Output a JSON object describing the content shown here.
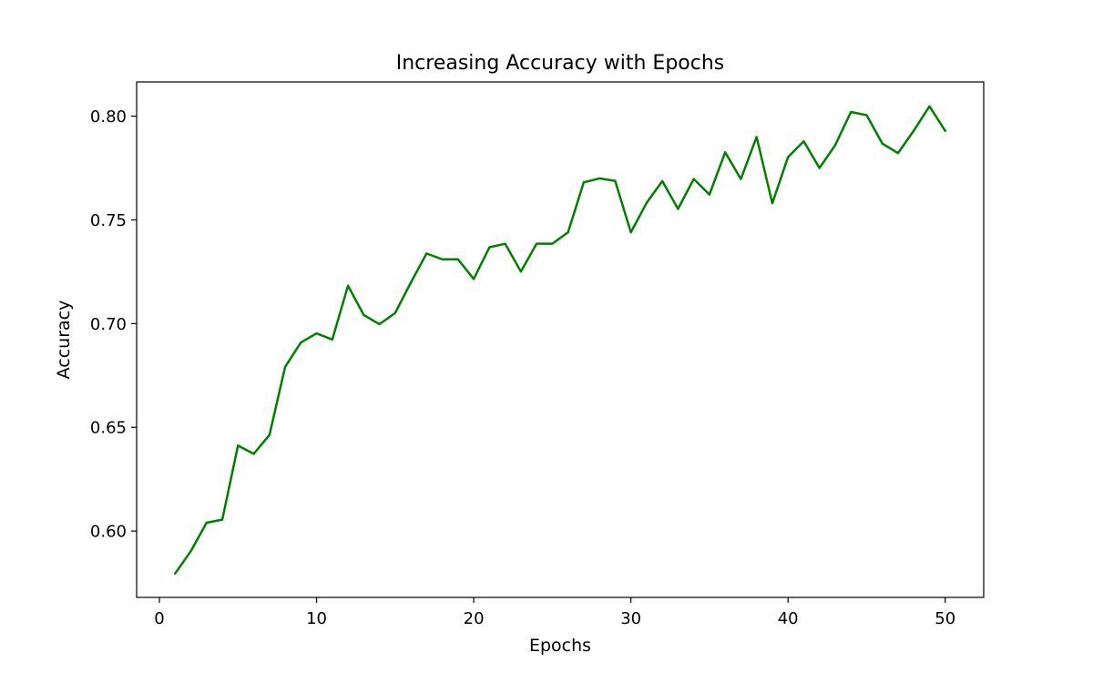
{
  "chart_data": {
    "type": "line",
    "title": "Increasing Accuracy with Epochs",
    "xlabel": "Epochs",
    "ylabel": "Accuracy",
    "xlim": [
      -1.45,
      52.45
    ],
    "ylim": [
      0.568,
      0.8165
    ],
    "x_ticks": [
      0,
      10,
      20,
      30,
      40,
      50
    ],
    "y_ticks": [
      0.6,
      0.65,
      0.7,
      0.75,
      0.8
    ],
    "x_tick_labels": [
      "0",
      "10",
      "20",
      "30",
      "40",
      "50"
    ],
    "y_tick_labels": [
      "0.60",
      "0.65",
      "0.70",
      "0.75",
      "0.80"
    ],
    "grid": false,
    "legend": "none",
    "series": [
      {
        "color": "#008000",
        "x": [
          1,
          2,
          3,
          4,
          5,
          6,
          7,
          8,
          9,
          10,
          11,
          12,
          13,
          14,
          15,
          16,
          17,
          18,
          19,
          20,
          21,
          22,
          23,
          24,
          25,
          26,
          27,
          28,
          29,
          30,
          31,
          32,
          33,
          34,
          35,
          36,
          37,
          38,
          39,
          40,
          41,
          42,
          43,
          44,
          45,
          46,
          47,
          48,
          49,
          50
        ],
        "y": [
          0.5795,
          0.5903,
          0.604,
          0.6055,
          0.6412,
          0.6372,
          0.6463,
          0.6791,
          0.6909,
          0.6953,
          0.6923,
          0.7183,
          0.7042,
          0.6997,
          0.7051,
          0.7198,
          0.7338,
          0.731,
          0.731,
          0.7215,
          0.7368,
          0.7385,
          0.7251,
          0.7385,
          0.7385,
          0.744,
          0.7681,
          0.77,
          0.7688,
          0.744,
          0.7582,
          0.7687,
          0.7553,
          0.7697,
          0.7622,
          0.7826,
          0.7697,
          0.79,
          0.758,
          0.7803,
          0.7879,
          0.775,
          0.786,
          0.802,
          0.8005,
          0.7868,
          0.7822,
          0.793,
          0.8048,
          0.7929
        ]
      }
    ]
  }
}
